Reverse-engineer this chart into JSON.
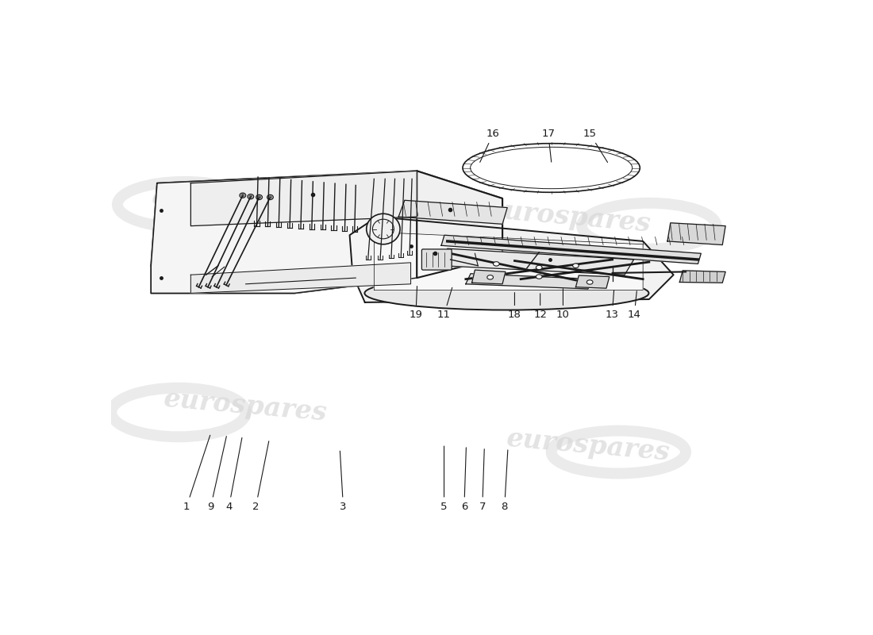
{
  "figsize": [
    11.0,
    8.0
  ],
  "dpi": 100,
  "bg": "#ffffff",
  "lc": "#1a1a1a",
  "wc": "#d8d8d8",
  "top_labels": {
    "1": {
      "lxy": [
        0.112,
        0.88
      ],
      "axy": [
        0.148,
        0.79
      ]
    },
    "9": {
      "lxy": [
        0.148,
        0.88
      ],
      "axy": [
        0.175,
        0.79
      ]
    },
    "4": {
      "lxy": [
        0.178,
        0.88
      ],
      "axy": [
        0.2,
        0.79
      ]
    },
    "2": {
      "lxy": [
        0.218,
        0.88
      ],
      "axy": [
        0.238,
        0.785
      ]
    },
    "3": {
      "lxy": [
        0.345,
        0.88
      ],
      "axy": [
        0.345,
        0.8
      ]
    },
    "5": {
      "lxy": [
        0.502,
        0.88
      ],
      "axy": [
        0.505,
        0.79
      ]
    },
    "6": {
      "lxy": [
        0.53,
        0.88
      ],
      "axy": [
        0.53,
        0.79
      ]
    },
    "7": {
      "lxy": [
        0.558,
        0.88
      ],
      "axy": [
        0.558,
        0.79
      ]
    },
    "8": {
      "lxy": [
        0.59,
        0.88
      ],
      "axy": [
        0.59,
        0.788
      ]
    }
  },
  "bot_labels": {
    "19": {
      "lxy": [
        0.465,
        0.46
      ],
      "axy": [
        0.467,
        0.565
      ]
    },
    "11": {
      "lxy": [
        0.507,
        0.46
      ],
      "axy": [
        0.52,
        0.555
      ]
    },
    "18": {
      "lxy": [
        0.61,
        0.46
      ],
      "axy": [
        0.612,
        0.545
      ]
    },
    "12": {
      "lxy": [
        0.645,
        0.46
      ],
      "axy": [
        0.648,
        0.545
      ]
    },
    "10": {
      "lxy": [
        0.683,
        0.46
      ],
      "axy": [
        0.685,
        0.555
      ]
    },
    "13": {
      "lxy": [
        0.755,
        0.46
      ],
      "axy": [
        0.758,
        0.55
      ]
    },
    "14": {
      "lxy": [
        0.79,
        0.46
      ],
      "axy": [
        0.793,
        0.548
      ]
    },
    "16": {
      "lxy": [
        0.582,
        0.905
      ],
      "axy": [
        0.56,
        0.84
      ]
    },
    "17": {
      "lxy": [
        0.66,
        0.905
      ],
      "axy": [
        0.665,
        0.838
      ]
    },
    "15": {
      "lxy": [
        0.72,
        0.905
      ],
      "axy": [
        0.745,
        0.838
      ]
    }
  }
}
